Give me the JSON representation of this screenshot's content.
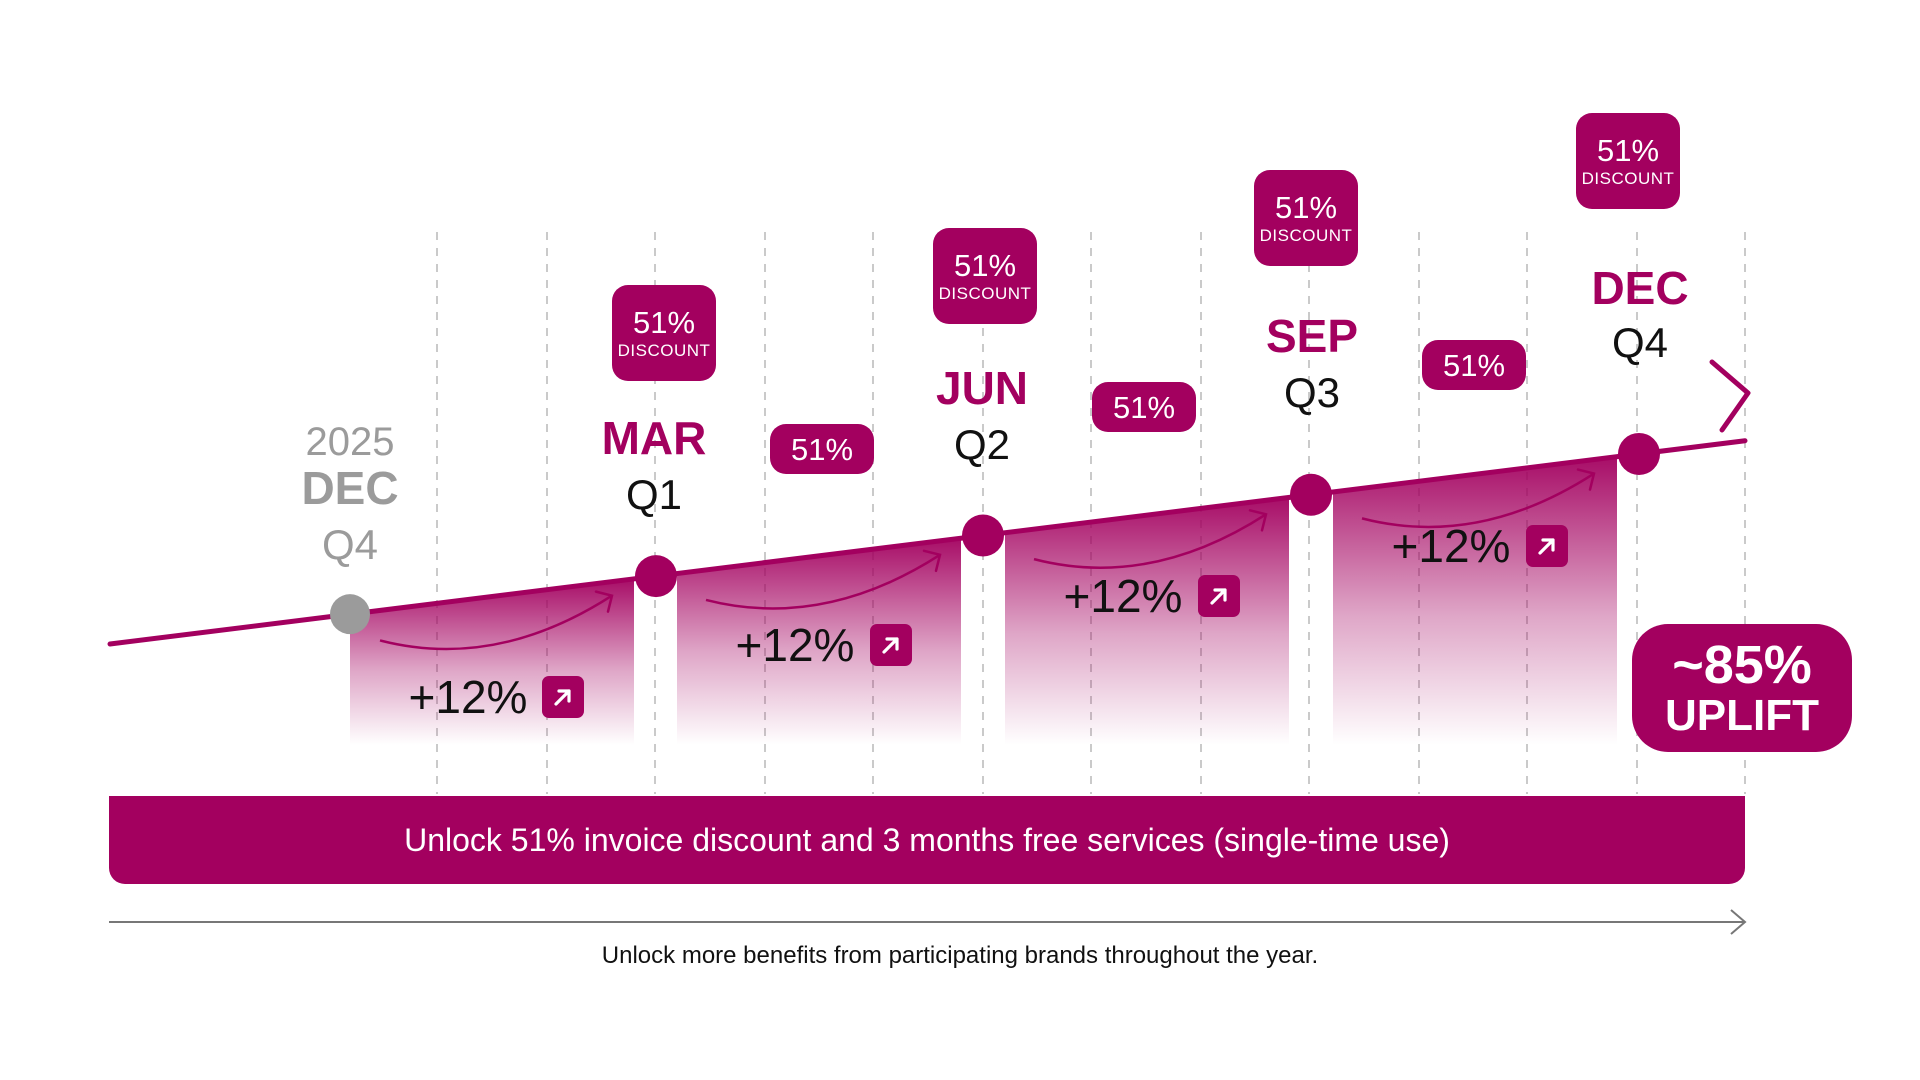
{
  "colors": {
    "accent": "#a3005f",
    "muted": "#9b9b9b",
    "grid": "#bdbdbd",
    "text": "#111111"
  },
  "start": {
    "year": "2025",
    "month": "DEC",
    "quarter": "Q4"
  },
  "milestones": [
    {
      "month": "MAR",
      "quarter": "Q1"
    },
    {
      "month": "JUN",
      "quarter": "Q2"
    },
    {
      "month": "SEP",
      "quarter": "Q3"
    },
    {
      "month": "DEC",
      "quarter": "Q4"
    }
  ],
  "segment_gains": [
    "+12%",
    "+12%",
    "+12%",
    "+12%"
  ],
  "milestone_badges": [
    {
      "value": "51%",
      "label": "DISCOUNT"
    },
    {
      "value": "51%",
      "label": "DISCOUNT"
    },
    {
      "value": "51%",
      "label": "DISCOUNT"
    },
    {
      "value": "51%",
      "label": "DISCOUNT"
    }
  ],
  "mid_badges": [
    "51%",
    "51%",
    "51%"
  ],
  "uplift": {
    "value": "~85%",
    "label": "UPLIFT"
  },
  "banner": "Unlock 51% invoice discount and 3 months free services (single-time use)",
  "footer": "Unlock more benefits from participating brands throughout the year.",
  "icons": {
    "gain": "arrow-up-right-icon"
  }
}
